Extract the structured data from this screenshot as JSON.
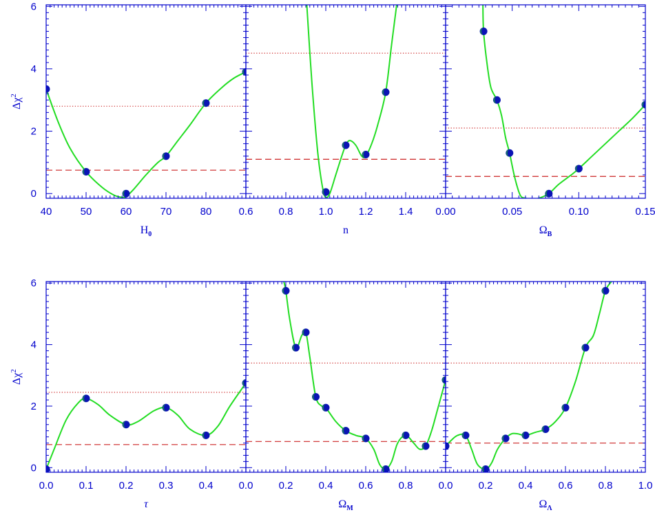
{
  "colors": {
    "axis": "#0000cc",
    "curve": "#22dd22",
    "marker": "#0a14b4",
    "marker_highlight": "#22cc22",
    "threshold": "#cc2222"
  },
  "chart_data": [
    {
      "type": "line",
      "panel": "H0",
      "xlabel": "H",
      "xlabel_sub": "0",
      "ylabel": "Δχ",
      "ylabel_sup": "2",
      "xlim": [
        40,
        90
      ],
      "ylim": [
        -0.15,
        6.05
      ],
      "xticks": [
        40,
        50,
        60,
        70,
        80
      ],
      "xtick_labels": [
        "40",
        "50",
        "60",
        "70",
        "80"
      ],
      "yticks": [
        0,
        2,
        4,
        6
      ],
      "ytick_labels": [
        "0",
        "2",
        "4",
        "6"
      ],
      "points": {
        "x": [
          40,
          50,
          60,
          70,
          80,
          90
        ],
        "y": [
          3.35,
          0.7,
          0.0,
          1.2,
          2.9,
          3.9
        ]
      },
      "curve": {
        "x": [
          40,
          43,
          46,
          50,
          54,
          57,
          59,
          60,
          62,
          65,
          68,
          70,
          73,
          76,
          80,
          84,
          87,
          90
        ],
        "y": [
          3.35,
          2.3,
          1.45,
          0.7,
          0.2,
          -0.05,
          -0.12,
          -0.1,
          0.15,
          0.6,
          1.0,
          1.2,
          1.7,
          2.2,
          2.9,
          3.4,
          3.7,
          3.9
        ]
      },
      "dotted_threshold": 2.8,
      "dashed_threshold": 0.75
    },
    {
      "type": "line",
      "panel": "n",
      "xlabel": "n",
      "xlim": [
        0.6,
        1.6
      ],
      "ylim": [
        -0.15,
        6.05
      ],
      "xticks": [
        0.6,
        0.8,
        1.0,
        1.2,
        1.4
      ],
      "xtick_labels": [
        "0.6",
        "0.8",
        "1.0",
        "1.2",
        "1.4"
      ],
      "yticks": [
        0,
        2,
        4,
        6
      ],
      "points": {
        "x": [
          1.0,
          1.1,
          1.2,
          1.3
        ],
        "y": [
          0.05,
          1.55,
          1.25,
          3.25
        ]
      },
      "curve": {
        "x": [
          0.905,
          0.93,
          0.96,
          0.985,
          1.0,
          1.02,
          1.05,
          1.08,
          1.1,
          1.12,
          1.15,
          1.18,
          1.2,
          1.23,
          1.26,
          1.3,
          1.33,
          1.355
        ],
        "y": [
          6.05,
          3.6,
          1.3,
          0.15,
          -0.12,
          0.0,
          0.6,
          1.2,
          1.55,
          1.7,
          1.55,
          1.2,
          1.2,
          1.6,
          2.2,
          3.25,
          4.8,
          6.05
        ]
      },
      "dotted_threshold": 4.5,
      "dashed_threshold": 1.1
    },
    {
      "type": "line",
      "panel": "OmegaB",
      "xlabel": "Ω",
      "xlabel_sub": "B",
      "xlim": [
        0.0,
        0.15
      ],
      "ylim": [
        -0.15,
        6.05
      ],
      "xticks": [
        0.0,
        0.05,
        0.1,
        0.15
      ],
      "xtick_labels": [
        "0.00",
        "0.05",
        "0.10",
        "0.15"
      ],
      "yticks": [
        0,
        2,
        4,
        6
      ],
      "points": {
        "x": [
          0.0285,
          0.0385,
          0.048,
          0.0775,
          0.1,
          0.15
        ],
        "y": [
          5.2,
          3.0,
          1.3,
          0.0,
          0.8,
          2.85
        ]
      },
      "curve": {
        "x": [
          0.028,
          0.0285,
          0.031,
          0.034,
          0.0385,
          0.042,
          0.045,
          0.048,
          0.052,
          0.056,
          0.06,
          0.065,
          0.07,
          0.0775,
          0.085,
          0.095,
          0.1,
          0.11,
          0.12,
          0.13,
          0.14,
          0.15
        ],
        "y": [
          6.05,
          5.2,
          4.2,
          3.4,
          3.0,
          2.5,
          1.8,
          1.3,
          0.5,
          -0.05,
          -0.15,
          -0.18,
          -0.15,
          0.0,
          0.3,
          0.62,
          0.8,
          1.2,
          1.6,
          2.0,
          2.4,
          2.85
        ]
      },
      "dotted_threshold": 2.1,
      "dashed_threshold": 0.55
    },
    {
      "type": "line",
      "panel": "tau",
      "xlabel": "τ",
      "ylabel": "Δχ",
      "ylabel_sup": "2",
      "xlim": [
        0.0,
        0.5
      ],
      "ylim": [
        -0.15,
        6.05
      ],
      "xticks": [
        0.0,
        0.1,
        0.2,
        0.3,
        0.4
      ],
      "xtick_labels": [
        "0.0",
        "0.1",
        "0.2",
        "0.3",
        "0.4"
      ],
      "yticks": [
        0,
        2,
        4,
        6
      ],
      "ytick_labels": [
        "0",
        "2",
        "4",
        "6"
      ],
      "points": {
        "x": [
          0.0,
          0.1,
          0.2,
          0.3,
          0.4,
          0.5
        ],
        "y": [
          -0.05,
          2.25,
          1.4,
          1.95,
          1.05,
          2.75
        ]
      },
      "curve": {
        "x": [
          0.0,
          0.02,
          0.05,
          0.08,
          0.1,
          0.13,
          0.16,
          0.2,
          0.23,
          0.27,
          0.3,
          0.33,
          0.36,
          0.4,
          0.43,
          0.46,
          0.5
        ],
        "y": [
          -0.05,
          0.6,
          1.55,
          2.1,
          2.25,
          2.05,
          1.7,
          1.4,
          1.5,
          1.85,
          1.95,
          1.7,
          1.25,
          1.05,
          1.35,
          2.0,
          2.75
        ]
      },
      "dotted_threshold": 2.45,
      "dashed_threshold": 0.75
    },
    {
      "type": "line",
      "panel": "OmegaM",
      "xlabel": "Ω",
      "xlabel_sub": "M",
      "xlim": [
        0.0,
        1.0
      ],
      "ylim": [
        -0.15,
        6.05
      ],
      "xticks": [
        0.0,
        0.2,
        0.4,
        0.6,
        0.8
      ],
      "xtick_labels": [
        "0.0",
        "0.2",
        "0.4",
        "0.6",
        "0.8"
      ],
      "yticks": [
        0,
        2,
        4,
        6
      ],
      "points": {
        "x": [
          0.2,
          0.25,
          0.3,
          0.35,
          0.4,
          0.5,
          0.6,
          0.7,
          0.8,
          0.9,
          1.0
        ],
        "y": [
          5.75,
          3.9,
          4.4,
          2.3,
          1.95,
          1.2,
          0.95,
          -0.05,
          1.05,
          0.7,
          2.85
        ]
      },
      "curve": {
        "x": [
          0.19,
          0.2,
          0.22,
          0.25,
          0.28,
          0.3,
          0.32,
          0.35,
          0.38,
          0.4,
          0.45,
          0.5,
          0.55,
          0.6,
          0.64,
          0.67,
          0.7,
          0.73,
          0.76,
          0.8,
          0.84,
          0.87,
          0.9,
          0.93,
          0.96,
          1.0
        ],
        "y": [
          6.05,
          5.75,
          4.8,
          3.9,
          4.3,
          4.4,
          3.6,
          2.3,
          2.0,
          1.95,
          1.5,
          1.2,
          1.05,
          0.95,
          0.6,
          0.1,
          -0.05,
          0.2,
          0.8,
          1.05,
          0.8,
          0.6,
          0.7,
          1.2,
          1.9,
          2.85
        ]
      },
      "dotted_threshold": 3.4,
      "dashed_threshold": 0.85
    },
    {
      "type": "line",
      "panel": "OmegaLambda",
      "xlabel": "Ω",
      "xlabel_sub": "Λ",
      "xlim": [
        0.0,
        1.0
      ],
      "ylim": [
        -0.15,
        6.05
      ],
      "xticks": [
        0.0,
        0.2,
        0.4,
        0.6,
        0.8,
        1.0
      ],
      "xtick_labels": [
        "0.0",
        "0.2",
        "0.4",
        "0.6",
        "0.8",
        "1.0"
      ],
      "yticks": [
        0,
        2,
        4,
        6
      ],
      "points": {
        "x": [
          0.0,
          0.1,
          0.2,
          0.3,
          0.4,
          0.5,
          0.6,
          0.7,
          0.8
        ],
        "y": [
          0.7,
          1.05,
          -0.05,
          0.95,
          1.05,
          1.25,
          1.95,
          3.9,
          5.75
        ]
      },
      "curve": {
        "x": [
          0.0,
          0.03,
          0.06,
          0.1,
          0.13,
          0.16,
          0.2,
          0.23,
          0.26,
          0.3,
          0.33,
          0.36,
          0.4,
          0.45,
          0.5,
          0.55,
          0.6,
          0.65,
          0.7,
          0.74,
          0.77,
          0.8,
          0.83
        ],
        "y": [
          0.7,
          0.9,
          1.05,
          1.05,
          0.6,
          0.1,
          -0.05,
          0.15,
          0.6,
          0.95,
          1.1,
          1.1,
          1.05,
          1.15,
          1.25,
          1.5,
          1.95,
          2.8,
          3.9,
          4.3,
          5.0,
          5.75,
          6.05
        ]
      },
      "dotted_threshold": 3.4,
      "dashed_threshold": 0.8
    }
  ]
}
